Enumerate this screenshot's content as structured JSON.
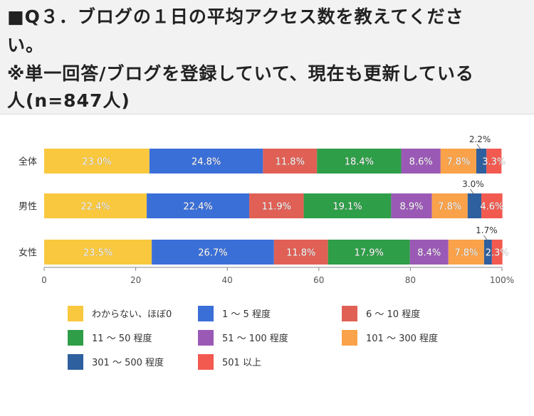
{
  "header": {
    "line1": "■Q３．ブログの１日の平均アクセス数を教えてくださ",
    "line2": "い。",
    "line3": "※単一回答/ブログを登録していて、現在も更新している",
    "line4": "人(n=847人)"
  },
  "chart_data": {
    "type": "bar",
    "orientation": "horizontal",
    "stacked": true,
    "categories": [
      "全体",
      "男性",
      "女性"
    ],
    "series": [
      {
        "name": "わからない、ほぼ0",
        "color": "#f9c83e",
        "values": [
          23.0,
          22.4,
          23.5
        ],
        "labels": [
          "23.0%",
          "22.4%",
          "23.5%"
        ]
      },
      {
        "name": "1 ～ 5 程度",
        "color": "#3b6fd8",
        "values": [
          24.8,
          22.4,
          26.7
        ],
        "labels": [
          "24.8%",
          "22.4%",
          "26.7%"
        ]
      },
      {
        "name": "6 ～ 10 程度",
        "color": "#e06055",
        "values": [
          11.8,
          11.9,
          11.8
        ],
        "labels": [
          "11.8%",
          "11.9%",
          "11.8%"
        ]
      },
      {
        "name": "11 ～ 50 程度",
        "color": "#2e9e48",
        "values": [
          18.4,
          19.1,
          17.9
        ],
        "labels": [
          "18.4%",
          "19.1%",
          "17.9%"
        ]
      },
      {
        "name": "51 ～ 100 程度",
        "color": "#9b59b6",
        "values": [
          8.6,
          8.9,
          8.4
        ],
        "labels": [
          "8.6%",
          "8.9%",
          "8.4%"
        ]
      },
      {
        "name": "101 ～ 300 程度",
        "color": "#f9a24a",
        "values": [
          7.8,
          7.8,
          7.8
        ],
        "labels": [
          "7.8%",
          "7.8%",
          "7.8%"
        ]
      },
      {
        "name": "301 ～ 500 程度",
        "color": "#2e5f9e",
        "values": [
          2.2,
          3.0,
          1.7
        ],
        "labels": [
          "2.2%",
          "3.0%",
          "1.7%"
        ],
        "callout": true
      },
      {
        "name": "501 以上",
        "color": "#f25a50",
        "values": [
          3.3,
          4.6,
          2.3
        ],
        "labels": [
          "3.3%",
          "4.6%",
          "2.3%"
        ]
      }
    ],
    "xlim": [
      0,
      100
    ],
    "ticks": [
      "0",
      "20",
      "40",
      "60",
      "80",
      "100%"
    ],
    "legend": "bottom"
  }
}
